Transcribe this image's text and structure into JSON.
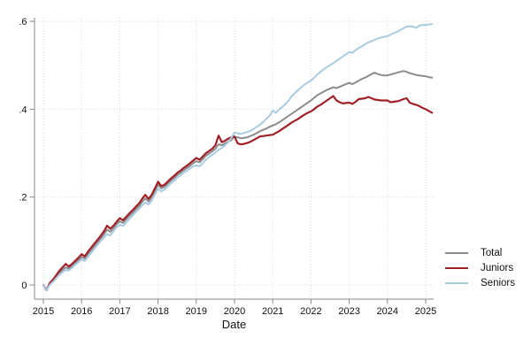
{
  "page": {
    "background": "#ffffff",
    "text_color": "#111111",
    "grid_color": "#dcdcdc",
    "axis_color": "#8a8a8a"
  },
  "chart_data": {
    "type": "line",
    "title": "",
    "xlabel": "Date",
    "ylabel": "",
    "grid": "dotted both axes",
    "legend_position": "outside right, lower",
    "x_start_year": 2015,
    "x_step_years": 0.0833333,
    "xlim": [
      2014.77,
      2025.45
    ],
    "ylim": [
      -0.03,
      0.62
    ],
    "x_ticks": [
      2015,
      2016,
      2017,
      2018,
      2019,
      2020,
      2021,
      2022,
      2023,
      2024,
      2025
    ],
    "y_ticks": [
      {
        "v": 0.0,
        "label": "0"
      },
      {
        "v": 0.2,
        "label": ".2"
      },
      {
        "v": 0.4,
        "label": ".4"
      },
      {
        "v": 0.6,
        "label": ".6"
      }
    ],
    "series": [
      {
        "name": "Total",
        "color": "#8c8c8c",
        "values": [
          0.0,
          -0.012,
          0.002,
          0.009,
          0.018,
          0.027,
          0.034,
          0.04,
          0.037,
          0.043,
          0.05,
          0.056,
          0.064,
          0.06,
          0.07,
          0.079,
          0.088,
          0.097,
          0.106,
          0.115,
          0.126,
          0.121,
          0.129,
          0.138,
          0.145,
          0.141,
          0.149,
          0.157,
          0.164,
          0.172,
          0.179,
          0.189,
          0.197,
          0.19,
          0.199,
          0.213,
          0.228,
          0.22,
          0.223,
          0.23,
          0.237,
          0.243,
          0.25,
          0.255,
          0.261,
          0.266,
          0.271,
          0.277,
          0.282,
          0.279,
          0.286,
          0.294,
          0.299,
          0.304,
          0.31,
          0.32,
          0.318,
          0.322,
          0.326,
          0.33,
          0.337,
          0.336,
          0.334,
          0.335,
          0.336,
          0.339,
          0.342,
          0.346,
          0.35,
          0.353,
          0.356,
          0.36,
          0.363,
          0.366,
          0.37,
          0.375,
          0.38,
          0.385,
          0.39,
          0.395,
          0.4,
          0.405,
          0.41,
          0.415,
          0.42,
          0.426,
          0.432,
          0.436,
          0.44,
          0.444,
          0.447,
          0.45,
          0.448,
          0.451,
          0.454,
          0.457,
          0.46,
          0.457,
          0.461,
          0.465,
          0.469,
          0.472,
          0.476,
          0.48,
          0.483,
          0.48,
          0.478,
          0.477,
          0.477,
          0.479,
          0.481,
          0.483,
          0.485,
          0.487,
          0.485,
          0.482,
          0.48,
          0.478,
          0.477,
          0.476,
          0.475,
          0.473,
          0.472
        ]
      },
      {
        "name": "Juniors",
        "color": "#a02128",
        "values": [
          0.0,
          -0.012,
          0.004,
          0.012,
          0.022,
          0.032,
          0.04,
          0.048,
          0.042,
          0.048,
          0.055,
          0.062,
          0.07,
          0.065,
          0.076,
          0.085,
          0.094,
          0.103,
          0.112,
          0.122,
          0.135,
          0.128,
          0.135,
          0.144,
          0.152,
          0.147,
          0.155,
          0.163,
          0.17,
          0.178,
          0.185,
          0.196,
          0.205,
          0.196,
          0.205,
          0.22,
          0.235,
          0.225,
          0.228,
          0.235,
          0.242,
          0.248,
          0.255,
          0.26,
          0.266,
          0.271,
          0.277,
          0.283,
          0.289,
          0.285,
          0.292,
          0.3,
          0.305,
          0.31,
          0.318,
          0.34,
          0.325,
          0.328,
          0.333,
          0.336,
          0.338,
          0.322,
          0.32,
          0.321,
          0.323,
          0.326,
          0.33,
          0.334,
          0.338,
          0.339,
          0.34,
          0.341,
          0.342,
          0.346,
          0.35,
          0.355,
          0.36,
          0.365,
          0.37,
          0.374,
          0.378,
          0.383,
          0.388,
          0.392,
          0.395,
          0.4,
          0.406,
          0.41,
          0.415,
          0.42,
          0.425,
          0.43,
          0.42,
          0.416,
          0.413,
          0.414,
          0.415,
          0.412,
          0.417,
          0.423,
          0.424,
          0.425,
          0.428,
          0.425,
          0.422,
          0.421,
          0.42,
          0.42,
          0.42,
          0.416,
          0.417,
          0.418,
          0.42,
          0.423,
          0.425,
          0.415,
          0.412,
          0.41,
          0.407,
          0.403,
          0.4,
          0.396,
          0.392
        ]
      },
      {
        "name": "Seniors",
        "color": "#a9cbe2",
        "values": [
          0.0,
          -0.012,
          0.0,
          0.007,
          0.015,
          0.023,
          0.029,
          0.034,
          0.033,
          0.039,
          0.046,
          0.052,
          0.058,
          0.055,
          0.064,
          0.073,
          0.082,
          0.091,
          0.1,
          0.108,
          0.116,
          0.113,
          0.122,
          0.131,
          0.137,
          0.134,
          0.142,
          0.15,
          0.158,
          0.166,
          0.173,
          0.181,
          0.188,
          0.183,
          0.192,
          0.206,
          0.219,
          0.213,
          0.217,
          0.224,
          0.231,
          0.237,
          0.244,
          0.249,
          0.255,
          0.26,
          0.265,
          0.27,
          0.272,
          0.27,
          0.277,
          0.285,
          0.291,
          0.296,
          0.302,
          0.308,
          0.312,
          0.318,
          0.324,
          0.335,
          0.347,
          0.345,
          0.344,
          0.346,
          0.348,
          0.351,
          0.355,
          0.36,
          0.365,
          0.371,
          0.378,
          0.385,
          0.397,
          0.392,
          0.4,
          0.405,
          0.412,
          0.42,
          0.43,
          0.437,
          0.444,
          0.45,
          0.456,
          0.461,
          0.465,
          0.472,
          0.479,
          0.485,
          0.491,
          0.496,
          0.5,
          0.505,
          0.51,
          0.515,
          0.52,
          0.525,
          0.53,
          0.528,
          0.535,
          0.539,
          0.543,
          0.548,
          0.552,
          0.555,
          0.558,
          0.561,
          0.563,
          0.565,
          0.566,
          0.57,
          0.573,
          0.576,
          0.58,
          0.584,
          0.588,
          0.589,
          0.588,
          0.585,
          0.59,
          0.592,
          0.592,
          0.593,
          0.594
        ]
      }
    ]
  },
  "legend": {
    "items": [
      {
        "label": "Total"
      },
      {
        "label": "Juniors"
      },
      {
        "label": "Seniors"
      }
    ]
  }
}
